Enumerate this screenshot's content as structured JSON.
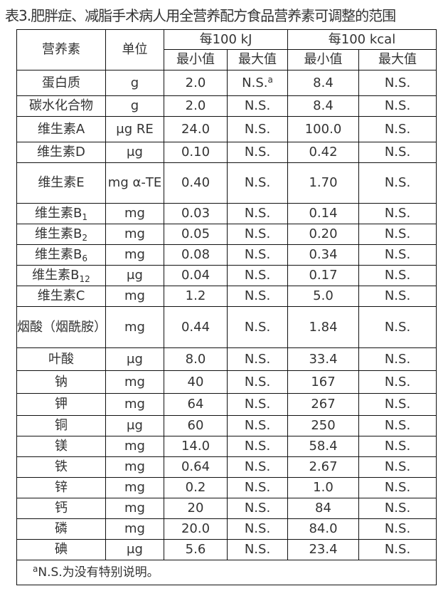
{
  "title": "表3.肥胖症、减脂手术病人用全营养配方食品营养素可调整的范围",
  "header": {
    "nutrient": "营养素",
    "unit": "单位",
    "per_kj": "每100 kJ",
    "per_kcal": "每100 kcal",
    "min": "最小值",
    "max": "最大值"
  },
  "rows": [
    {
      "name": "蛋白质",
      "sub": "",
      "unit": "g",
      "kj_min": "2.0",
      "kj_max": "N.S.",
      "kj_max_sup": "a",
      "kcal_min": "8.4",
      "kcal_max": "N.S."
    },
    {
      "name": "碳水化合物",
      "sub": "",
      "unit": "g",
      "kj_min": "2.0",
      "kj_max": "N.S.",
      "kcal_min": "8.4",
      "kcal_max": "N.S."
    },
    {
      "name": "维生素A",
      "sub": "",
      "unit": "μg RE",
      "kj_min": "24.0",
      "kj_max": "N.S.",
      "kcal_min": "100.0",
      "kcal_max": "N.S."
    },
    {
      "name": "维生素D",
      "sub": "",
      "unit": "μg",
      "kj_min": "0.10",
      "kj_max": "N.S.",
      "kcal_min": "0.42",
      "kcal_max": "N.S."
    },
    {
      "name": "维生素E",
      "sub": "",
      "unit": "mg α-TE",
      "kj_min": "0.40",
      "kj_max": "N.S.",
      "kcal_min": "1.70",
      "kcal_max": "N.S."
    },
    {
      "name": "维生素B",
      "sub": "1",
      "unit": "mg",
      "kj_min": "0.03",
      "kj_max": "N.S.",
      "kcal_min": "0.14",
      "kcal_max": "N.S."
    },
    {
      "name": "维生素B",
      "sub": "2",
      "unit": "mg",
      "kj_min": "0.05",
      "kj_max": "N.S.",
      "kcal_min": "0.20",
      "kcal_max": "N.S."
    },
    {
      "name": "维生素B",
      "sub": "6",
      "unit": "mg",
      "kj_min": "0.08",
      "kj_max": "N.S.",
      "kcal_min": "0.34",
      "kcal_max": "N.S."
    },
    {
      "name": "维生素B",
      "sub": "12",
      "unit": "μg",
      "kj_min": "0.04",
      "kj_max": "N.S.",
      "kcal_min": "0.17",
      "kcal_max": "N.S."
    },
    {
      "name": "维生素C",
      "sub": "",
      "unit": "mg",
      "kj_min": "1.2",
      "kj_max": "N.S.",
      "kcal_min": "5.0",
      "kcal_max": "N.S."
    },
    {
      "name": "烟酸（烟酰胺）",
      "sub": "",
      "unit": "mg",
      "kj_min": "0.44",
      "kj_max": "N.S.",
      "kcal_min": "1.84",
      "kcal_max": "N.S."
    },
    {
      "name": "叶酸",
      "sub": "",
      "unit": "μg",
      "kj_min": "8.0",
      "kj_max": "N.S.",
      "kcal_min": "33.4",
      "kcal_max": "N.S."
    },
    {
      "name": "钠",
      "sub": "",
      "unit": "mg",
      "kj_min": "40",
      "kj_max": "N.S.",
      "kcal_min": "167",
      "kcal_max": "N.S."
    },
    {
      "name": "钾",
      "sub": "",
      "unit": "mg",
      "kj_min": "64",
      "kj_max": "N.S.",
      "kcal_min": "267",
      "kcal_max": "N.S."
    },
    {
      "name": "铜",
      "sub": "",
      "unit": "μg",
      "kj_min": "60",
      "kj_max": "N.S.",
      "kcal_min": "250",
      "kcal_max": "N.S."
    },
    {
      "name": "镁",
      "sub": "",
      "unit": "mg",
      "kj_min": "14.0",
      "kj_max": "N.S.",
      "kcal_min": "58.4",
      "kcal_max": "N.S."
    },
    {
      "name": "铁",
      "sub": "",
      "unit": "mg",
      "kj_min": "0.64",
      "kj_max": "N.S.",
      "kcal_min": "2.67",
      "kcal_max": "N.S."
    },
    {
      "name": "锌",
      "sub": "",
      "unit": "mg",
      "kj_min": "0.2",
      "kj_max": "N.S.",
      "kcal_min": "1.0",
      "kcal_max": "N.S."
    },
    {
      "name": "钙",
      "sub": "",
      "unit": "mg",
      "kj_min": "20",
      "kj_max": "N.S.",
      "kcal_min": "84",
      "kcal_max": "N.S."
    },
    {
      "name": "磷",
      "sub": "",
      "unit": "mg",
      "kj_min": "20.0",
      "kj_max": "N.S.",
      "kcal_min": "84.0",
      "kcal_max": "N.S."
    },
    {
      "name": "碘",
      "sub": "",
      "unit": "μg",
      "kj_min": "5.6",
      "kj_max": "N.S.",
      "kcal_min": "23.4",
      "kcal_max": "N.S."
    }
  ],
  "footnote": {
    "mark": "a",
    "text": "N.S.为没有特别说明。"
  }
}
